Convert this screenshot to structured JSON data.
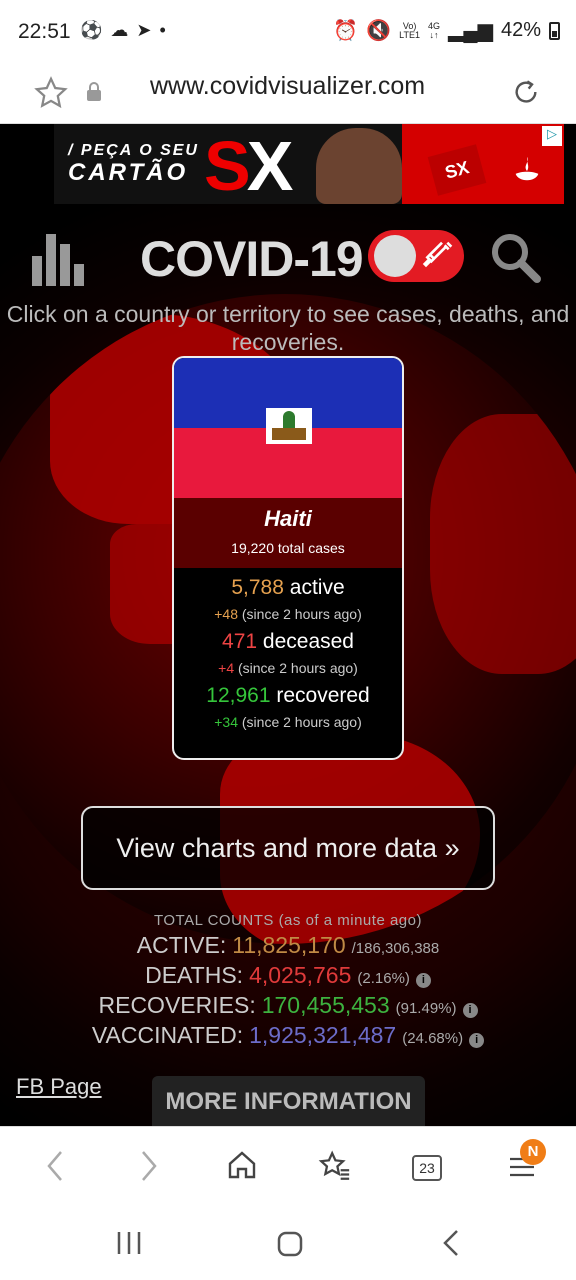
{
  "status_bar": {
    "time": "22:51",
    "network_volte": "Vo)",
    "network_lte": "LTE1",
    "network_4g": "4G",
    "battery": "42%"
  },
  "address_bar": {
    "url": "www.covidvisualizer.com"
  },
  "ad": {
    "tagline_line1": "/ PEÇA O SEU",
    "tagline_line2": "CARTÃO",
    "brand_s": "S",
    "brand_x": "X",
    "card_brand": "SX"
  },
  "site": {
    "title": "COVID-19",
    "instructions": "Click on a country or territory to see cases, deaths, and recoveries."
  },
  "country_card": {
    "country": "Haiti",
    "total_cases": "19,220 total cases",
    "active_value": "5,788",
    "active_label": "active",
    "active_change": "+48",
    "active_since": "(since 2 hours ago)",
    "deceased_value": "471",
    "deceased_label": "deceased",
    "deceased_change": "+4",
    "deceased_since": "(since 2 hours ago)",
    "recovered_value": "12,961",
    "recovered_label": "recovered",
    "recovered_change": "+34",
    "recovered_since": "(since 2 hours ago)"
  },
  "view_charts_button": "View charts and more data »",
  "totals": {
    "header": "TOTAL COUNTS (as of a minute ago)",
    "active_label": "ACTIVE:",
    "active_value": "11,825,170",
    "active_total": "/186,306,388",
    "deaths_label": "DEATHS:",
    "deaths_value": "4,025,765",
    "deaths_pct": "(2.16%)",
    "recoveries_label": "RECOVERIES:",
    "recoveries_value": "170,455,453",
    "recoveries_pct": "(91.49%)",
    "vaccinated_label": "VACCINATED:",
    "vaccinated_value": "1,925,321,487",
    "vaccinated_pct": "(24.68%)",
    "info_glyph": "i"
  },
  "footer": {
    "fb_page": "FB Page",
    "more_information": "MORE INFORMATION"
  },
  "browser_bar": {
    "tabs_count": "23",
    "menu_badge": "N"
  },
  "colors": {
    "accent_red": "#e31b23",
    "active": "#e5a14f",
    "deceased": "#ee4444",
    "recovered": "#35c53b",
    "vaccinated": "#6c6cc9"
  }
}
